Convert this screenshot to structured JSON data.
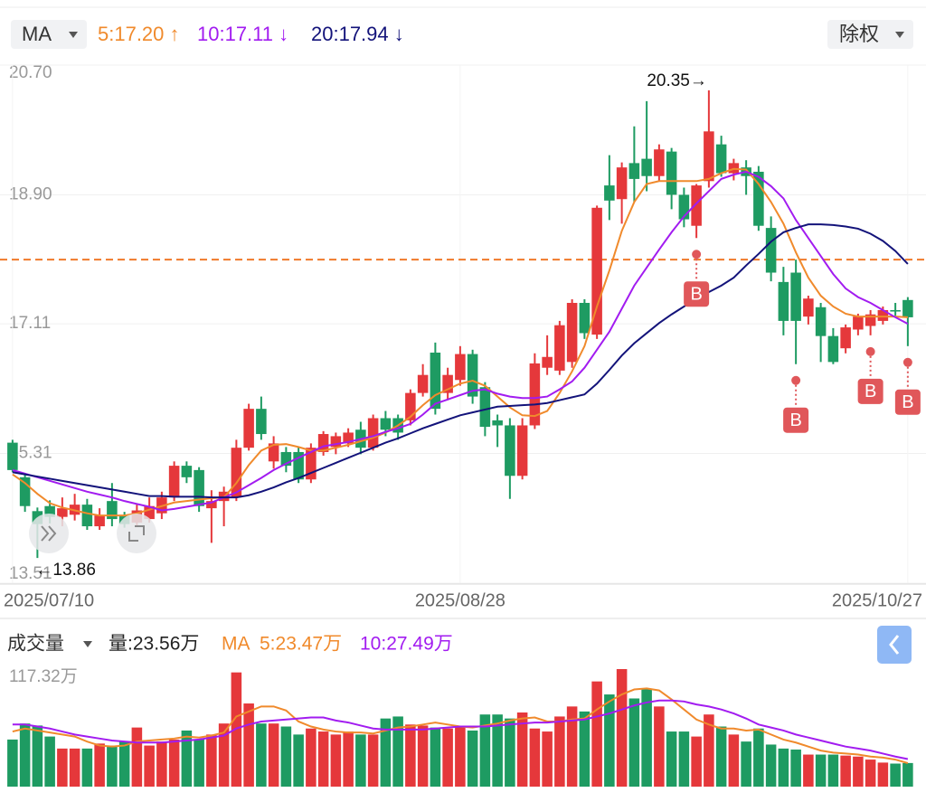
{
  "chart_data": [
    {
      "type": "candlestick",
      "indicator": "MA",
      "adjust": "除权",
      "categories": [
        "2025/07/10",
        null,
        null,
        null,
        null,
        null,
        null,
        null,
        null,
        null,
        null,
        null,
        null,
        null,
        null,
        null,
        null,
        null,
        null,
        null,
        null,
        null,
        null,
        null,
        null,
        null,
        null,
        null,
        null,
        null,
        null,
        null,
        null,
        null,
        null,
        null,
        "2025/08/28",
        null,
        null,
        null,
        null,
        null,
        null,
        null,
        null,
        null,
        null,
        null,
        null,
        null,
        null,
        null,
        null,
        null,
        null,
        null,
        null,
        null,
        null,
        null,
        null,
        null,
        null,
        null,
        null,
        null,
        null,
        null,
        null,
        null,
        null,
        null,
        "2025/10/27"
      ],
      "open": [
        15.46,
        14.98,
        14.51,
        14.58,
        14.43,
        14.46,
        14.6,
        14.3,
        14.65,
        14.45,
        14.35,
        14.4,
        14.48,
        14.7,
        15.14,
        15.08,
        14.55,
        14.65,
        14.7,
        15.39,
        15.93,
        15.2,
        15.33,
        15.33,
        14.95,
        15.33,
        15.4,
        15.45,
        15.64,
        15.39,
        15.8,
        15.8,
        15.77,
        16.15,
        16.71,
        16.15,
        16.33,
        16.69,
        16.23,
        15.77,
        15.7,
        15.0,
        15.7,
        16.5,
        16.46,
        16.58,
        17.4,
        16.96,
        19.03,
        18.84,
        19.34,
        19.4,
        19.16,
        19.5,
        18.9,
        18.47,
        19.09,
        19.6,
        19.2,
        19.28,
        19.22,
        18.44,
        17.69,
        17.82,
        17.21,
        17.34,
        16.94,
        16.77,
        17.03,
        17.08,
        17.15,
        17.3,
        17.44
      ],
      "high": [
        15.5,
        15.02,
        14.56,
        14.66,
        14.7,
        14.75,
        14.68,
        14.55,
        14.9,
        14.5,
        14.6,
        14.7,
        14.78,
        15.2,
        15.2,
        15.12,
        14.8,
        14.85,
        15.5,
        16.0,
        16.1,
        15.55,
        15.4,
        15.4,
        15.45,
        15.62,
        15.6,
        15.66,
        15.75,
        15.85,
        15.9,
        15.85,
        16.2,
        16.55,
        16.85,
        16.5,
        16.8,
        16.75,
        16.3,
        15.85,
        15.8,
        15.8,
        16.7,
        16.95,
        17.15,
        17.45,
        17.45,
        18.75,
        19.45,
        19.35,
        19.85,
        20.2,
        19.6,
        19.55,
        19.0,
        19.05,
        20.35,
        19.72,
        19.4,
        19.38,
        19.3,
        18.6,
        17.9,
        18.0,
        17.5,
        17.4,
        17.05,
        17.1,
        17.25,
        17.3,
        17.35,
        17.4,
        17.48
      ],
      "low": [
        15.05,
        14.5,
        13.86,
        14.34,
        14.3,
        14.38,
        14.25,
        14.25,
        14.3,
        14.28,
        14.3,
        14.35,
        14.4,
        14.65,
        14.9,
        14.5,
        14.07,
        14.3,
        14.65,
        15.35,
        15.5,
        15.1,
        15.05,
        14.9,
        14.9,
        15.28,
        15.3,
        15.4,
        15.3,
        15.35,
        15.55,
        15.5,
        15.7,
        16.1,
        15.85,
        16.05,
        16.25,
        16.0,
        15.55,
        15.4,
        14.68,
        14.95,
        15.65,
        16.4,
        16.4,
        16.5,
        16.9,
        16.9,
        18.55,
        18.5,
        18.8,
        18.95,
        19.1,
        18.7,
        18.45,
        18.3,
        19.0,
        19.15,
        19.1,
        18.9,
        18.4,
        17.7,
        16.95,
        16.55,
        17.1,
        16.58,
        16.55,
        16.7,
        16.95,
        16.95,
        17.1,
        17.22,
        16.8
      ],
      "close": [
        15.08,
        14.58,
        14.33,
        14.43,
        14.55,
        14.6,
        14.3,
        14.45,
        14.4,
        14.33,
        14.52,
        14.58,
        14.7,
        15.14,
        14.98,
        14.58,
        14.65,
        14.78,
        15.39,
        15.93,
        15.58,
        15.45,
        15.14,
        14.95,
        15.39,
        15.58,
        15.55,
        15.6,
        15.39,
        15.8,
        15.64,
        15.6,
        16.15,
        16.4,
        15.93,
        16.4,
        16.69,
        16.1,
        15.68,
        15.7,
        15.0,
        15.7,
        16.56,
        16.65,
        17.09,
        17.4,
        16.98,
        18.72,
        18.82,
        19.28,
        19.12,
        19.16,
        19.53,
        18.9,
        18.56,
        19.03,
        19.78,
        19.2,
        19.34,
        19.16,
        18.47,
        17.82,
        17.15,
        17.15,
        17.46,
        16.94,
        16.58,
        17.06,
        17.21,
        17.24,
        17.3,
        17.28,
        17.2
      ],
      "up_color": "#e5383b",
      "down_color": "#1e9b62",
      "series": [
        {
          "name": "5:17.20 ↑",
          "color": "#f08a2c",
          "values": [
            15.02,
            14.9,
            14.75,
            14.62,
            14.56,
            14.52,
            14.48,
            14.45,
            14.45,
            14.45,
            14.48,
            14.53,
            14.58,
            14.63,
            14.65,
            14.67,
            14.69,
            14.7,
            14.9,
            15.15,
            15.35,
            15.43,
            15.44,
            15.4,
            15.35,
            15.35,
            15.39,
            15.43,
            15.48,
            15.53,
            15.6,
            15.7,
            15.82,
            15.98,
            16.12,
            16.2,
            16.28,
            16.32,
            16.25,
            16.1,
            15.95,
            15.84,
            15.83,
            15.9,
            16.15,
            16.45,
            16.8,
            17.35,
            17.85,
            18.4,
            18.8,
            19.05,
            19.09,
            19.09,
            19.09,
            19.09,
            19.12,
            19.2,
            19.26,
            19.25,
            19.05,
            18.8,
            18.5,
            18.1,
            17.75,
            17.5,
            17.35,
            17.25,
            17.21,
            17.21,
            17.21,
            17.21,
            17.2
          ]
        },
        {
          "name": "10:17.11 ↓",
          "color": "#a21cf0",
          "values": [
            15.08,
            15.03,
            14.98,
            14.93,
            14.88,
            14.83,
            14.78,
            14.74,
            14.7,
            14.65,
            14.61,
            14.57,
            14.52,
            14.54,
            14.57,
            14.6,
            14.63,
            14.7,
            14.77,
            14.87,
            14.97,
            15.08,
            15.17,
            15.25,
            15.33,
            15.41,
            15.44,
            15.47,
            15.51,
            15.55,
            15.61,
            15.66,
            15.72,
            15.85,
            16.0,
            16.06,
            16.12,
            16.18,
            16.2,
            16.14,
            16.1,
            16.08,
            16.08,
            16.1,
            16.2,
            16.31,
            16.5,
            16.75,
            17.0,
            17.32,
            17.64,
            17.89,
            18.14,
            18.38,
            18.6,
            18.78,
            18.95,
            19.12,
            19.18,
            19.22,
            19.15,
            19.02,
            18.85,
            18.55,
            18.3,
            18.05,
            17.8,
            17.6,
            17.48,
            17.4,
            17.3,
            17.2,
            17.11
          ]
        },
        {
          "name": "20:17.94 ↓",
          "color": "#13137a",
          "values": [
            15.05,
            15.02,
            14.99,
            14.96,
            14.93,
            14.9,
            14.87,
            14.84,
            14.81,
            14.78,
            14.75,
            14.72,
            14.72,
            14.71,
            14.71,
            14.71,
            14.7,
            14.7,
            14.7,
            14.73,
            14.78,
            14.84,
            14.91,
            14.97,
            15.04,
            15.11,
            15.18,
            15.25,
            15.32,
            15.39,
            15.46,
            15.52,
            15.59,
            15.66,
            15.72,
            15.78,
            15.84,
            15.88,
            15.92,
            15.96,
            15.97,
            15.98,
            15.99,
            16.01,
            16.05,
            16.09,
            16.13,
            16.28,
            16.47,
            16.67,
            16.84,
            16.98,
            17.12,
            17.24,
            17.35,
            17.45,
            17.55,
            17.64,
            17.75,
            17.92,
            18.08,
            18.25,
            18.38,
            18.44,
            18.49,
            18.49,
            18.48,
            18.46,
            18.43,
            18.36,
            18.26,
            18.12,
            17.94
          ]
        }
      ],
      "signal_labels": [
        null,
        null,
        null,
        null,
        null,
        null,
        null,
        null,
        null,
        null,
        null,
        null,
        null,
        null,
        null,
        null,
        null,
        null,
        null,
        null,
        null,
        null,
        null,
        null,
        null,
        null,
        null,
        null,
        null,
        null,
        null,
        null,
        null,
        null,
        null,
        null,
        null,
        null,
        null,
        null,
        null,
        null,
        null,
        null,
        null,
        null,
        null,
        null,
        null,
        null,
        null,
        null,
        null,
        null,
        null,
        "B",
        null,
        null,
        null,
        null,
        null,
        null,
        null,
        "B",
        null,
        null,
        null,
        null,
        null,
        "B",
        null,
        null,
        "B"
      ],
      "signal_color": "#e0575a",
      "price_line": 18.0,
      "price_line_color": "#f07a2a",
      "max_label": "20.35→",
      "min_label": "←13.86",
      "ylim": [
        13.51,
        20.7
      ],
      "yticks": [
        {
          "value": 20.7,
          "label": "20.70"
        },
        {
          "value": 18.9,
          "label": "18.90"
        },
        17.11,
        15.31,
        13.51
      ],
      "grid": true
    },
    {
      "type": "bar",
      "title": "成交量",
      "indicator": "MA",
      "series": [
        {
          "name": "量:23.56万",
          "color": "#222222",
          "values": [
            47,
            63,
            61,
            50,
            38,
            38,
            38,
            43,
            41,
            45,
            59,
            41,
            45,
            47,
            56,
            47,
            52,
            63,
            114,
            83,
            63,
            63,
            60,
            52,
            58,
            55,
            52,
            55,
            52,
            52,
            68,
            70,
            62,
            61,
            59,
            58,
            60,
            56,
            72,
            72,
            68,
            74,
            58,
            55,
            70,
            80,
            75,
            105,
            92,
            117.32,
            88,
            97,
            80,
            55,
            55,
            50,
            72,
            60,
            52,
            45,
            58,
            42,
            38,
            37,
            32,
            32,
            32,
            31,
            30,
            27,
            24,
            23,
            23.56
          ]
        },
        {
          "name": "5:23.47万",
          "color": "#f08a2c",
          "values": [
            55,
            58,
            56,
            54,
            52,
            50,
            45,
            41,
            40,
            41,
            45,
            46,
            47,
            48,
            50,
            49,
            51,
            54,
            70,
            75,
            80,
            80,
            76,
            65,
            60,
            57,
            55,
            54,
            54,
            53,
            56,
            59,
            60,
            62,
            64,
            62,
            60,
            59,
            61,
            63,
            66,
            68,
            69,
            65,
            65,
            67,
            68,
            77,
            85,
            92,
            97,
            98,
            96,
            87,
            77,
            67,
            62,
            58,
            58,
            56,
            57,
            52,
            47,
            44,
            40,
            36,
            34,
            33,
            32,
            30,
            29,
            27,
            23.47
          ]
        },
        {
          "name": "10:27.49万",
          "color": "#a21cf0",
          "values": [
            62,
            62,
            60,
            58,
            55,
            52,
            50,
            48,
            46,
            45,
            44,
            44,
            44,
            45,
            46,
            47,
            49,
            51,
            58,
            62,
            65,
            66,
            67,
            68,
            69,
            69,
            66,
            64,
            61,
            58,
            57,
            57,
            57,
            57,
            58,
            59,
            60,
            60,
            60,
            61,
            62,
            63,
            64,
            64,
            65,
            66,
            67,
            70,
            73,
            77,
            81,
            84,
            86,
            86,
            85,
            82,
            80,
            77,
            73,
            68,
            62,
            59,
            56,
            52,
            49,
            46,
            43,
            40,
            38,
            36,
            33,
            30,
            27.49
          ]
        }
      ],
      "ylim": [
        0,
        117.32
      ],
      "yticks": [
        {
          "value": 117.32,
          "label": "117.32万"
        }
      ]
    }
  ]
}
